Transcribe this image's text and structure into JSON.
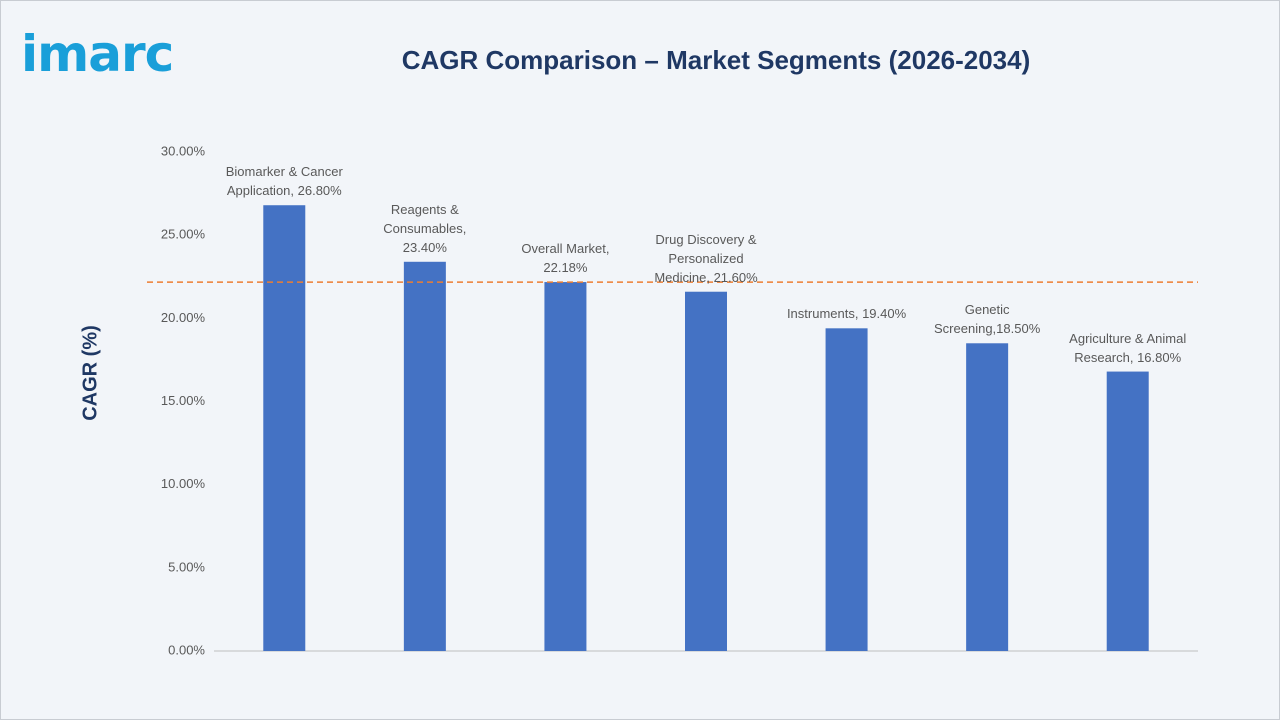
{
  "logo": "imarc",
  "chart_data": {
    "type": "bar",
    "title": "CAGR Comparison – Market Segments (2026-2034)",
    "y_label": "CAGR (%)",
    "values": [
      26.8,
      23.4,
      22.18,
      21.6,
      19.4,
      18.5,
      16.8
    ],
    "value_labels": [
      "Biomarker & Cancer Application, 26.80%",
      "Reagents & Consumables, 23.40%",
      "Overall Market, 22.18%",
      "Drug Discovery & Personalized Medicine, 21.60%",
      "Instruments, 19.40%",
      "Genetic Screening,18.50%",
      "Agriculture & Animal Research, 16.80%"
    ],
    "color": "#4472c4",
    "ylim": [
      0,
      30
    ],
    "yticks": [
      {
        "value": 0,
        "label": "0.00%"
      },
      {
        "value": 5,
        "label": "5.00%"
      },
      {
        "value": 10,
        "label": "10.00%"
      },
      {
        "value": 15,
        "label": "15.00%"
      },
      {
        "value": 20,
        "label": "20.00%"
      },
      {
        "value": 25,
        "label": "25.00%"
      },
      {
        "value": 30,
        "label": "30.00%"
      }
    ],
    "reference_line": {
      "value": 22.18,
      "color": "#ed7d31"
    },
    "grid": false
  }
}
